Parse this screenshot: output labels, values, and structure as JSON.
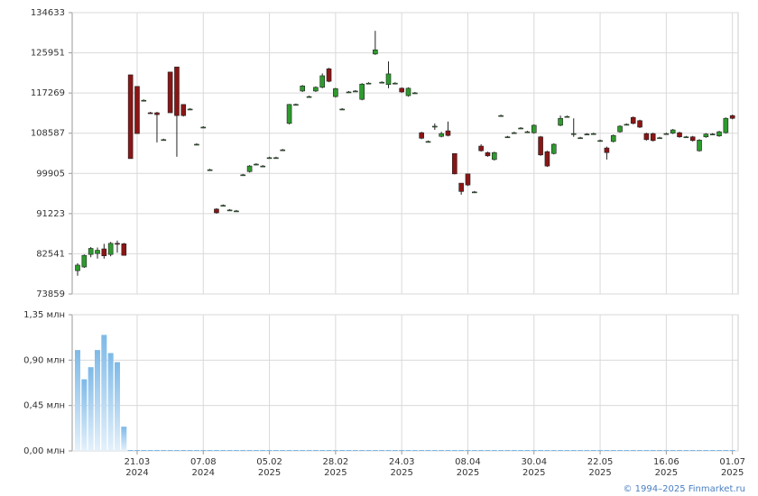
{
  "chart_data": [
    {
      "type": "candlestick",
      "ylim": [
        73859,
        134633
      ],
      "yticks": [
        134633,
        125951,
        117269,
        108587,
        99905,
        91223,
        82541,
        73859
      ],
      "grid": true,
      "up_color": "#2e9b2e",
      "down_color": "#8b1515",
      "ohlc": [
        [
          78900,
          80500,
          77800,
          80100
        ],
        [
          79700,
          82400,
          79500,
          82200
        ],
        [
          82400,
          84000,
          81800,
          83700
        ],
        [
          82600,
          83900,
          81500,
          83300
        ],
        [
          83600,
          84700,
          81500,
          82100
        ],
        [
          82400,
          85100,
          82000,
          84800
        ],
        [
          84800,
          85400,
          82800,
          84600
        ],
        [
          84700,
          84900,
          82200,
          82200
        ],
        [
          121200,
          121200,
          103100,
          103100
        ],
        [
          118700,
          118700,
          108500,
          108500
        ],
        [
          115700,
          115900,
          115500,
          115700
        ],
        [
          113000,
          113200,
          112800,
          112900
        ],
        [
          113000,
          113200,
          106600,
          112600
        ],
        [
          107200,
          107400,
          107000,
          107200
        ],
        [
          121800,
          121800,
          113000,
          113000
        ],
        [
          122900,
          122900,
          103500,
          112400
        ],
        [
          114800,
          114800,
          112200,
          112400
        ],
        [
          113800,
          114000,
          113600,
          113800
        ],
        [
          106200,
          106400,
          106000,
          106200
        ],
        [
          109900,
          110100,
          109700,
          109900
        ],
        [
          100700,
          100900,
          100500,
          100700
        ],
        [
          92200,
          92400,
          91200,
          91400
        ],
        [
          93000,
          93200,
          92800,
          93000
        ],
        [
          92000,
          92200,
          91800,
          92000
        ],
        [
          91800,
          92000,
          91600,
          91800
        ],
        [
          99600,
          99800,
          99400,
          99600
        ],
        [
          100300,
          101700,
          100100,
          101500
        ],
        [
          101900,
          102100,
          101700,
          101900
        ],
        [
          101500,
          101700,
          101300,
          101500
        ],
        [
          103300,
          103500,
          103100,
          103300
        ],
        [
          103300,
          103500,
          103100,
          103300
        ],
        [
          105000,
          105200,
          104800,
          105000
        ],
        [
          110700,
          114900,
          110500,
          114800
        ],
        [
          114800,
          115000,
          114600,
          114800
        ],
        [
          117700,
          119000,
          117500,
          118800
        ],
        [
          116500,
          116700,
          116300,
          116500
        ],
        [
          117700,
          118700,
          117500,
          118500
        ],
        [
          118500,
          121500,
          118300,
          121000
        ],
        [
          122500,
          122700,
          119600,
          119800
        ],
        [
          116500,
          118400,
          116300,
          118200
        ],
        [
          113800,
          114000,
          113600,
          113800
        ],
        [
          117500,
          117700,
          117300,
          117500
        ],
        [
          117700,
          117900,
          117500,
          117700
        ],
        [
          115900,
          119400,
          115700,
          119200
        ],
        [
          119400,
          119600,
          119200,
          119400
        ],
        [
          125700,
          130700,
          125500,
          126600
        ],
        [
          119600,
          119800,
          119400,
          119600
        ],
        [
          119100,
          124100,
          118300,
          121400
        ],
        [
          119400,
          119600,
          119200,
          119400
        ],
        [
          118300,
          118500,
          117300,
          117500
        ],
        [
          116700,
          118500,
          116500,
          118300
        ],
        [
          117300,
          117500,
          117100,
          117300
        ],
        [
          108700,
          108900,
          107300,
          107500
        ],
        [
          106800,
          107000,
          106600,
          106800
        ],
        [
          110100,
          110700,
          109300,
          110100
        ],
        [
          107900,
          108900,
          107700,
          108500
        ],
        [
          109100,
          111100,
          107900,
          108100
        ],
        [
          104200,
          104200,
          99700,
          99800
        ],
        [
          97800,
          97800,
          95300,
          96000
        ],
        [
          99800,
          99800,
          97200,
          97400
        ],
        [
          95900,
          96100,
          95700,
          95900
        ],
        [
          105800,
          106200,
          104600,
          104800
        ],
        [
          104400,
          104600,
          103500,
          103700
        ],
        [
          102900,
          104600,
          102700,
          104400
        ],
        [
          112400,
          112600,
          112200,
          112400
        ],
        [
          107800,
          108000,
          107600,
          107800
        ],
        [
          108700,
          108900,
          108500,
          108700
        ],
        [
          109700,
          109900,
          109500,
          109700
        ],
        [
          108900,
          109100,
          108700,
          108900
        ],
        [
          108700,
          110500,
          108500,
          110300
        ],
        [
          107800,
          108000,
          103700,
          103900
        ],
        [
          104600,
          104800,
          101300,
          101500
        ],
        [
          104200,
          106400,
          104000,
          106200
        ],
        [
          110300,
          112400,
          110100,
          111800
        ],
        [
          112200,
          112400,
          112000,
          112200
        ],
        [
          108500,
          111800,
          107800,
          108500
        ],
        [
          107600,
          107800,
          107400,
          107600
        ],
        [
          108400,
          108600,
          108200,
          108400
        ],
        [
          108500,
          108700,
          108300,
          108500
        ],
        [
          107000,
          107200,
          106800,
          107000
        ],
        [
          105400,
          105700,
          102900,
          104400
        ],
        [
          106800,
          108300,
          106600,
          108100
        ],
        [
          108900,
          110300,
          108700,
          110100
        ],
        [
          110500,
          110700,
          110300,
          110500
        ],
        [
          112000,
          112200,
          110500,
          110700
        ],
        [
          111300,
          111500,
          109700,
          109900
        ],
        [
          108500,
          108700,
          107000,
          107200
        ],
        [
          108500,
          108700,
          106800,
          107000
        ],
        [
          107600,
          107800,
          107400,
          107600
        ],
        [
          108500,
          108700,
          108300,
          108500
        ],
        [
          108600,
          109500,
          108400,
          109300
        ],
        [
          108700,
          108900,
          107600,
          107800
        ],
        [
          107800,
          108000,
          107600,
          107800
        ],
        [
          107800,
          108000,
          106800,
          107000
        ],
        [
          104800,
          107300,
          104600,
          107100
        ],
        [
          107800,
          108600,
          107600,
          108400
        ],
        [
          108400,
          108600,
          108200,
          108400
        ],
        [
          108000,
          109100,
          107800,
          108900
        ],
        [
          108700,
          112000,
          108500,
          111800
        ],
        [
          112400,
          112600,
          111600,
          111800
        ]
      ]
    },
    {
      "type": "bar",
      "color": "#7db9e8",
      "ylim": [
        0,
        1.35
      ],
      "grid": true,
      "yticks": [
        {
          "value": 0,
          "label": "0,00 млн"
        },
        {
          "value": 0.45,
          "label": "0,45 млн"
        },
        {
          "value": 0.9,
          "label": "0,90 млн"
        },
        {
          "value": 1.35,
          "label": "1,35 млн"
        }
      ],
      "categories": [
        null,
        null,
        null,
        null,
        null,
        null,
        null,
        null,
        null,
        "21.03 2024",
        null,
        null,
        null,
        null,
        null,
        null,
        null,
        null,
        null,
        "07.08 2024",
        null,
        null,
        null,
        null,
        null,
        null,
        null,
        null,
        null,
        "05.02 2025",
        null,
        null,
        null,
        null,
        null,
        null,
        null,
        null,
        null,
        "28.02 2025",
        null,
        null,
        null,
        null,
        null,
        null,
        null,
        null,
        null,
        "24.03 2025",
        null,
        null,
        null,
        null,
        null,
        null,
        null,
        null,
        null,
        "08.04 2025",
        null,
        null,
        null,
        null,
        null,
        null,
        null,
        null,
        null,
        "30.04 2025",
        null,
        null,
        null,
        null,
        null,
        null,
        null,
        null,
        null,
        "22.05 2025",
        null,
        null,
        null,
        null,
        null,
        null,
        null,
        null,
        null,
        "16.06 2025",
        null,
        null,
        null,
        null,
        null,
        null,
        null,
        null,
        null,
        "01.07 2025"
      ],
      "values": [
        1.0,
        0.71,
        0.83,
        1.0,
        1.15,
        0.97,
        0.88,
        0.24,
        0,
        0,
        0,
        0,
        0,
        0,
        0,
        0,
        0,
        0,
        0,
        0,
        0,
        0,
        0,
        0,
        0,
        0,
        0,
        0,
        0,
        0,
        0,
        0,
        0,
        0,
        0,
        0,
        0,
        0,
        0,
        0,
        0,
        0,
        0,
        0,
        0,
        0,
        0,
        0,
        0,
        0,
        0,
        0,
        0,
        0,
        0,
        0,
        0,
        0,
        0,
        0,
        0,
        0,
        0,
        0,
        0,
        0,
        0,
        0,
        0,
        0,
        0,
        0,
        0,
        0,
        0,
        0,
        0,
        0,
        0,
        0,
        0,
        0,
        0,
        0,
        0,
        0,
        0,
        0,
        0,
        0,
        0,
        0,
        0,
        0,
        0,
        0,
        0,
        0,
        0,
        0
      ]
    }
  ],
  "footer": "© 1994–2025 Finmarket.ru"
}
